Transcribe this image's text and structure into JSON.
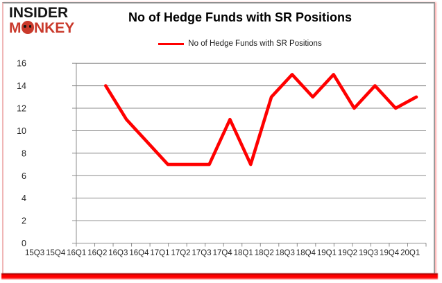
{
  "logo": {
    "line1": "INSIDER",
    "line2": "MONKEY",
    "line2_pre": "M",
    "line2_post": "NKEY",
    "accent_color": "#c9392b"
  },
  "title": "No of Hedge Funds with SR Positions",
  "legend": {
    "label": "No of Hedge Funds with SR Positions",
    "swatch_color": "#ff0000"
  },
  "chart_data": {
    "type": "line",
    "title": "No of Hedge Funds with SR Positions",
    "categories": [
      "15Q3",
      "15Q4",
      "16Q1",
      "16Q2",
      "16Q3",
      "16Q4",
      "17Q1",
      "17Q2",
      "17Q3",
      "17Q4",
      "18Q1",
      "18Q2",
      "18Q3",
      "18Q4",
      "19Q1",
      "19Q2",
      "19Q3",
      "19Q4",
      "20Q1"
    ],
    "series": [
      {
        "name": "No of Hedge Funds with SR Positions",
        "color": "#ff0000",
        "values": [
          null,
          null,
          null,
          14,
          11,
          9,
          7,
          7,
          7,
          11,
          7,
          13,
          15,
          13,
          15,
          12,
          14,
          12,
          13
        ]
      }
    ],
    "xlabel": "",
    "ylabel": "",
    "ylim": [
      0,
      16
    ],
    "yticks": [
      0,
      2,
      4,
      6,
      8,
      10,
      12,
      14,
      16
    ],
    "grid": true,
    "legend_position": "top",
    "gridline_color": "#8c8c8c",
    "axis_color": "#8c8c8c",
    "axis_text_color": "#262626"
  }
}
